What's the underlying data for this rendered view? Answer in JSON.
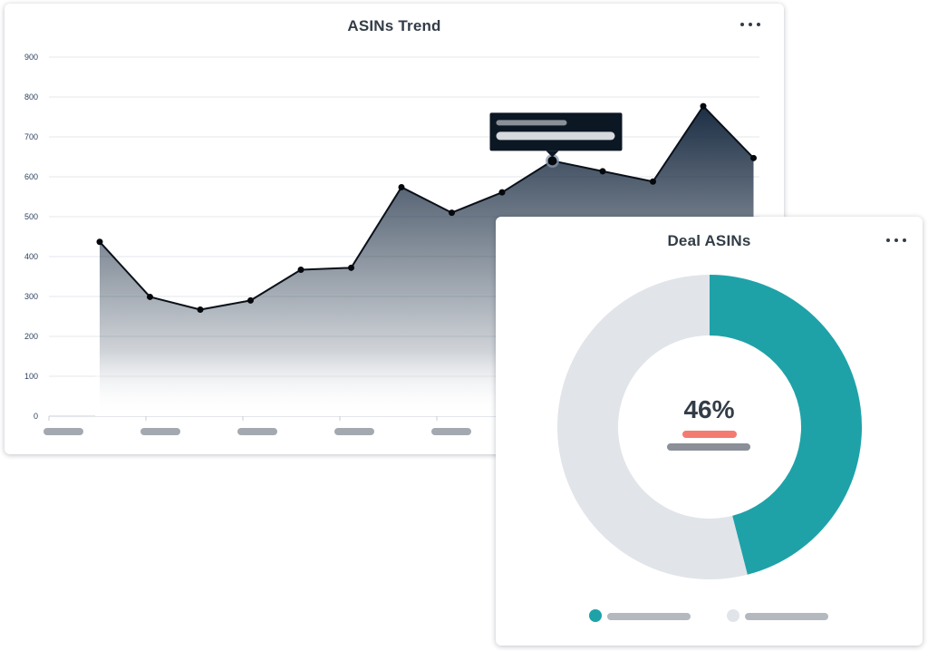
{
  "trend_card": {
    "title": "ASINs Trend",
    "menu_icon": "more-horizontal-icon"
  },
  "deal_card": {
    "title": "Deal ASINs",
    "menu_icon": "more-horizontal-icon",
    "center_value": "46%",
    "legend_colors": [
      "#1ea2a8",
      "#e1e4e9"
    ]
  },
  "chart_data": [
    {
      "type": "area",
      "title": "ASINs Trend",
      "xlabel": "",
      "ylabel": "",
      "ylim": [
        0,
        900
      ],
      "y_ticks": [
        0,
        100,
        200,
        300,
        400,
        500,
        600,
        700,
        800,
        900
      ],
      "grid": true,
      "series": [
        {
          "values": [
            437,
            299,
            267,
            290,
            367,
            372,
            574,
            510,
            561,
            640,
            614,
            588,
            777,
            647
          ]
        }
      ],
      "highlighted_point_index": 9,
      "line_color": "#0b1119",
      "fill_top_color": "#1c2e44"
    },
    {
      "type": "pie",
      "title": "Deal ASINs",
      "slices": [
        {
          "value": 46,
          "color": "#1ea2a8"
        },
        {
          "value": 54,
          "color": "#e1e4e9"
        }
      ],
      "center_label": "46%"
    }
  ]
}
